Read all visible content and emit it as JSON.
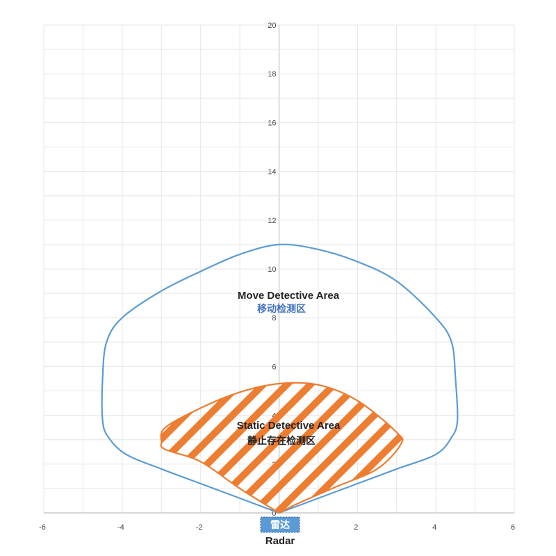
{
  "chart_data": {
    "type": "area",
    "xlim": [
      -6,
      6
    ],
    "ylim": [
      0,
      20
    ],
    "x_ticks": [
      "-6",
      "-4",
      "-2",
      "0",
      "2",
      "4",
      "6"
    ],
    "y_ticks": [
      "20",
      "18",
      "16",
      "14",
      "12",
      "10",
      "8",
      "6",
      "4",
      "2",
      "0"
    ],
    "grid": true,
    "colors": {
      "move": "#5b9bd5",
      "static": "#ed7d31",
      "grid": "#e6e6e6",
      "axis": "#bfbfbf",
      "radar_box": "#5b9bd5"
    },
    "areas": [
      {
        "name": "Move Detective Area",
        "name_cn": "移动检测区",
        "style": "outline",
        "points": [
          [
            0,
            0
          ],
          [
            -1,
            0.6
          ],
          [
            -2,
            1.2
          ],
          [
            -3,
            1.8
          ],
          [
            -3.9,
            2.4
          ],
          [
            -4.35,
            3.1
          ],
          [
            -4.5,
            3.8
          ],
          [
            -4.5,
            5.5
          ],
          [
            -4.4,
            7
          ],
          [
            -4,
            8
          ],
          [
            -3,
            9.1
          ],
          [
            -2,
            9.9
          ],
          [
            -1,
            10.6
          ],
          [
            0,
            11
          ],
          [
            1,
            10.8
          ],
          [
            2,
            10.3
          ],
          [
            3,
            9.5
          ],
          [
            4,
            8
          ],
          [
            4.4,
            7
          ],
          [
            4.5,
            5.5
          ],
          [
            4.55,
            3.8
          ],
          [
            4.4,
            3.1
          ],
          [
            4,
            2.4
          ],
          [
            3,
            1.8
          ],
          [
            2,
            1.2
          ],
          [
            1,
            0.6
          ],
          [
            0,
            0
          ]
        ]
      },
      {
        "name": "Static Detective Area",
        "name_cn": "静止存在检测区",
        "style": "hatched",
        "points": [
          [
            0,
            0
          ],
          [
            -1,
            1
          ],
          [
            -2,
            2.1
          ],
          [
            -2.9,
            2.6
          ],
          [
            -3,
            2.9
          ],
          [
            -2.9,
            3.5
          ],
          [
            -2,
            4.3
          ],
          [
            -1,
            4.95
          ],
          [
            0,
            5.3
          ],
          [
            1,
            5.25
          ],
          [
            2,
            4.6
          ],
          [
            3,
            3.3
          ],
          [
            3.1,
            2.8
          ],
          [
            2.5,
            1.8
          ],
          [
            1.5,
            1.1
          ],
          [
            0.5,
            0.4
          ],
          [
            0,
            0
          ]
        ]
      }
    ],
    "origin_label_cn": "雷达",
    "origin_label": "Radar"
  }
}
